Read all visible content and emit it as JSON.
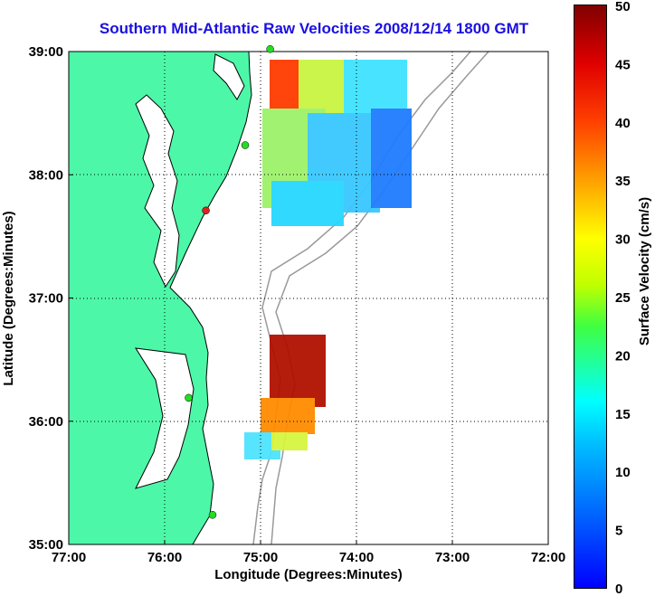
{
  "title": "Southern Mid-Atlantic Raw Velocities 2008/12/14 1800 GMT",
  "x_axis": {
    "label": "Longitude (Degrees:Minutes)",
    "ticks": [
      "77:00",
      "76:00",
      "75:00",
      "74:00",
      "73:00",
      "72:00"
    ]
  },
  "y_axis": {
    "label": "Latitude (Degrees:Minutes)",
    "ticks": [
      "39:00",
      "38:00",
      "37:00",
      "36:00",
      "35:00"
    ]
  },
  "colorbar": {
    "label": "Surface Velocity (cm/s)",
    "min": 0,
    "max": 50,
    "ticks": [
      "50",
      "45",
      "40",
      "35",
      "30",
      "25",
      "20",
      "15",
      "10",
      "5",
      "0"
    ]
  },
  "colors": {
    "land": "#4df7a8",
    "ocean": "#ffffff",
    "coastline": "#000000",
    "bathymetry": "#999999",
    "station_normal": "#22dd22",
    "station_alert": "#dd2222",
    "title": "#1a10e0"
  },
  "stations": [
    {
      "lon": -74.9,
      "lat": 39.02,
      "status": "normal"
    },
    {
      "lon": -75.16,
      "lat": 38.24,
      "status": "normal"
    },
    {
      "lon": -75.57,
      "lat": 37.71,
      "status": "alert"
    },
    {
      "lon": -75.75,
      "lat": 36.19,
      "status": "normal"
    },
    {
      "lon": -75.5,
      "lat": 35.24,
      "status": "normal"
    }
  ]
}
